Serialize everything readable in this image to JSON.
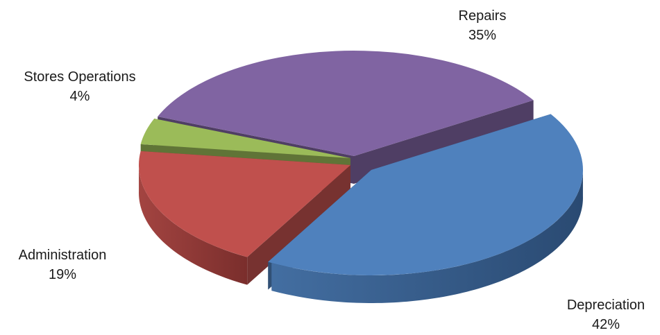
{
  "chart_data": {
    "type": "pie",
    "title": "",
    "style": "3d-exploded",
    "slices": [
      {
        "label": "Depreciation",
        "value": 42,
        "value_label": "42%",
        "color": "#4F81BD",
        "side_color": "#2A4A72"
      },
      {
        "label": "Administration",
        "value": 19,
        "value_label": "19%",
        "color": "#C0504D",
        "side_color": "#7A2E2C"
      },
      {
        "label": "Stores Operations",
        "value": 4,
        "value_label": "4%",
        "color": "#9BBB59",
        "side_color": "#5C7430"
      },
      {
        "label": "Repairs",
        "value": 35,
        "value_label": "35%",
        "color": "#8064A2",
        "side_color": "#3F2F55"
      }
    ]
  }
}
